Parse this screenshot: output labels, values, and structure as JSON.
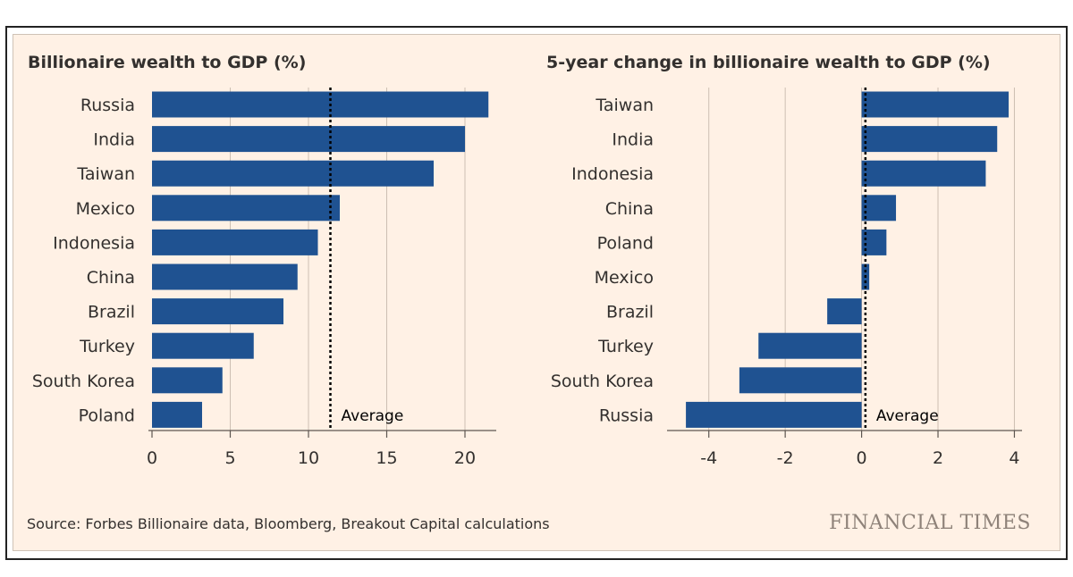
{
  "footer": {
    "source": "Source: Forbes Billionaire data, Bloomberg, Breakout Capital calculations",
    "logo": "FINANCIAL TIMES"
  },
  "colors": {
    "bar": "#1f5291",
    "grid": "#cdbfb2",
    "axis": "#5d5650",
    "background": "#fff1e5"
  },
  "chart_data": [
    {
      "type": "bar",
      "orientation": "horizontal",
      "title": "Billionaire wealth to GDP (%)",
      "categories": [
        "Russia",
        "India",
        "Taiwan",
        "Mexico",
        "Indonesia",
        "China",
        "Brazil",
        "Turkey",
        "South Korea",
        "Poland"
      ],
      "values": [
        21.5,
        20.0,
        18.0,
        12.0,
        10.6,
        9.3,
        8.4,
        6.5,
        4.5,
        3.2
      ],
      "xlim": [
        0,
        22
      ],
      "xticks": [
        0,
        5,
        10,
        15,
        20
      ],
      "average": 11.4,
      "average_label": "Average",
      "grid": true
    },
    {
      "type": "bar",
      "orientation": "horizontal",
      "title": "5-year change in billionaire wealth to GDP (%)",
      "categories": [
        "Taiwan",
        "India",
        "Indonesia",
        "China",
        "Poland",
        "Mexico",
        "Brazil",
        "Turkey",
        "South Korea",
        "Russia"
      ],
      "values": [
        3.85,
        3.55,
        3.25,
        0.9,
        0.65,
        0.2,
        -0.9,
        -2.7,
        -3.2,
        -4.6
      ],
      "xlim": [
        -5,
        4.2
      ],
      "xticks": [
        -4,
        -2,
        0,
        2,
        4
      ],
      "average": 0.1,
      "average_label": "Average",
      "grid": true
    }
  ]
}
